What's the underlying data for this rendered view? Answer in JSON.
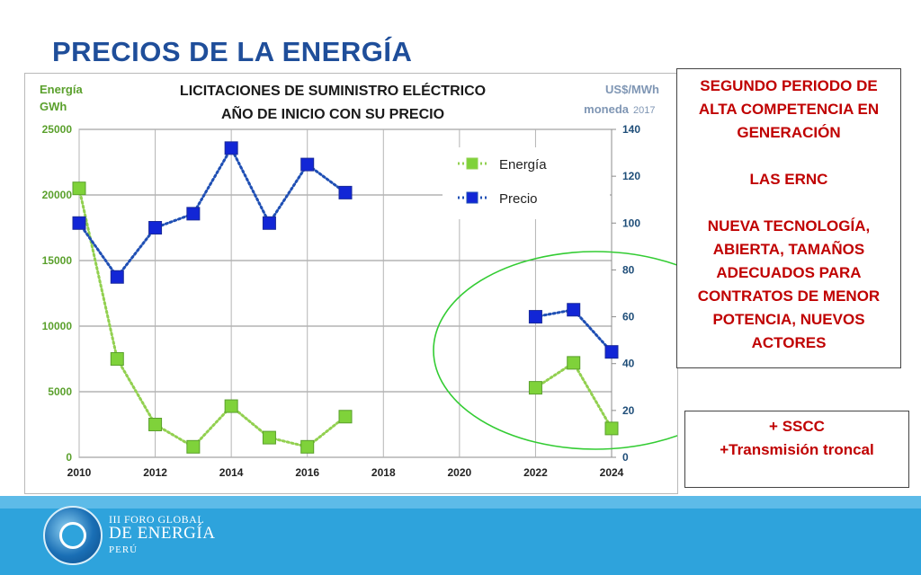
{
  "slide": {
    "title": "PRECIOS DE LA ENERGÍA"
  },
  "chart_data": {
    "type": "line",
    "title": "LICITACIONES DE SUMINISTRO ELÉCTRICO",
    "subtitle": "AÑO DE INICIO CON SU PRECIO",
    "y_left_label": [
      "Energía",
      "GWh"
    ],
    "y_right_label": [
      "US$/MWh",
      "moneda"
    ],
    "y_right_label_year": "2017",
    "x": [
      2010,
      2011,
      2012,
      2013,
      2014,
      2015,
      2016,
      2017,
      2022,
      2023,
      2024
    ],
    "xlim": [
      2010,
      2024
    ],
    "x_ticks": [
      "2010",
      "2012",
      "2014",
      "2016",
      "2018",
      "2020",
      "2022",
      "2024"
    ],
    "y_left_lim": [
      0,
      25000
    ],
    "y_left_ticks": [
      "0",
      "5000",
      "10000",
      "15000",
      "20000",
      "25000"
    ],
    "y_right_lim": [
      0,
      140
    ],
    "y_right_ticks": [
      "0",
      "20",
      "40",
      "60",
      "80",
      "100",
      "120",
      "140"
    ],
    "grid": true,
    "legend_position": "top-right",
    "series": [
      {
        "name": "Energía",
        "axis": "left",
        "color": "#92d050",
        "marker_color": "#7fd23a",
        "points": [
          [
            2010,
            20500
          ],
          [
            2011,
            7500
          ],
          [
            2012,
            2500
          ],
          [
            2013,
            800
          ],
          [
            2014,
            3900
          ],
          [
            2015,
            1500
          ],
          [
            2016,
            800
          ],
          [
            2017,
            3100
          ],
          [
            2022,
            5300
          ],
          [
            2023,
            7200
          ],
          [
            2024,
            2200
          ]
        ]
      },
      {
        "name": "Precio",
        "axis": "right",
        "color": "#1f4fb4",
        "marker_color": "#1226d6",
        "points": [
          [
            2010,
            100
          ],
          [
            2011,
            77
          ],
          [
            2012,
            98
          ],
          [
            2013,
            104
          ],
          [
            2014,
            132
          ],
          [
            2015,
            100
          ],
          [
            2016,
            125
          ],
          [
            2017,
            113
          ],
          [
            2022,
            60
          ],
          [
            2023,
            63
          ],
          [
            2024,
            45
          ]
        ]
      }
    ],
    "highlight_ellipse_color": "#33cc33"
  },
  "callouts": {
    "main": [
      "SEGUNDO PERIODO DE",
      "ALTA COMPETENCIA EN",
      "GENERACIÓN",
      "",
      "LAS ERNC",
      "",
      "NUEVA TECNOLOGÍA,",
      "ABIERTA, TAMAÑOS",
      "ADECUADOS PARA",
      "CONTRATOS DE MENOR",
      "POTENCIA, NUEVOS",
      "ACTORES"
    ],
    "small": [
      "+ SSCC",
      "+Transmisión troncal"
    ]
  },
  "footer": {
    "brand_line1": "III FORO GLOBAL",
    "brand_line2": "DE ENERGÍA",
    "brand_line3": "PERÚ",
    "logo_icon": "globe-ring-logo-icon",
    "bar_color": "#2ea3dc"
  }
}
